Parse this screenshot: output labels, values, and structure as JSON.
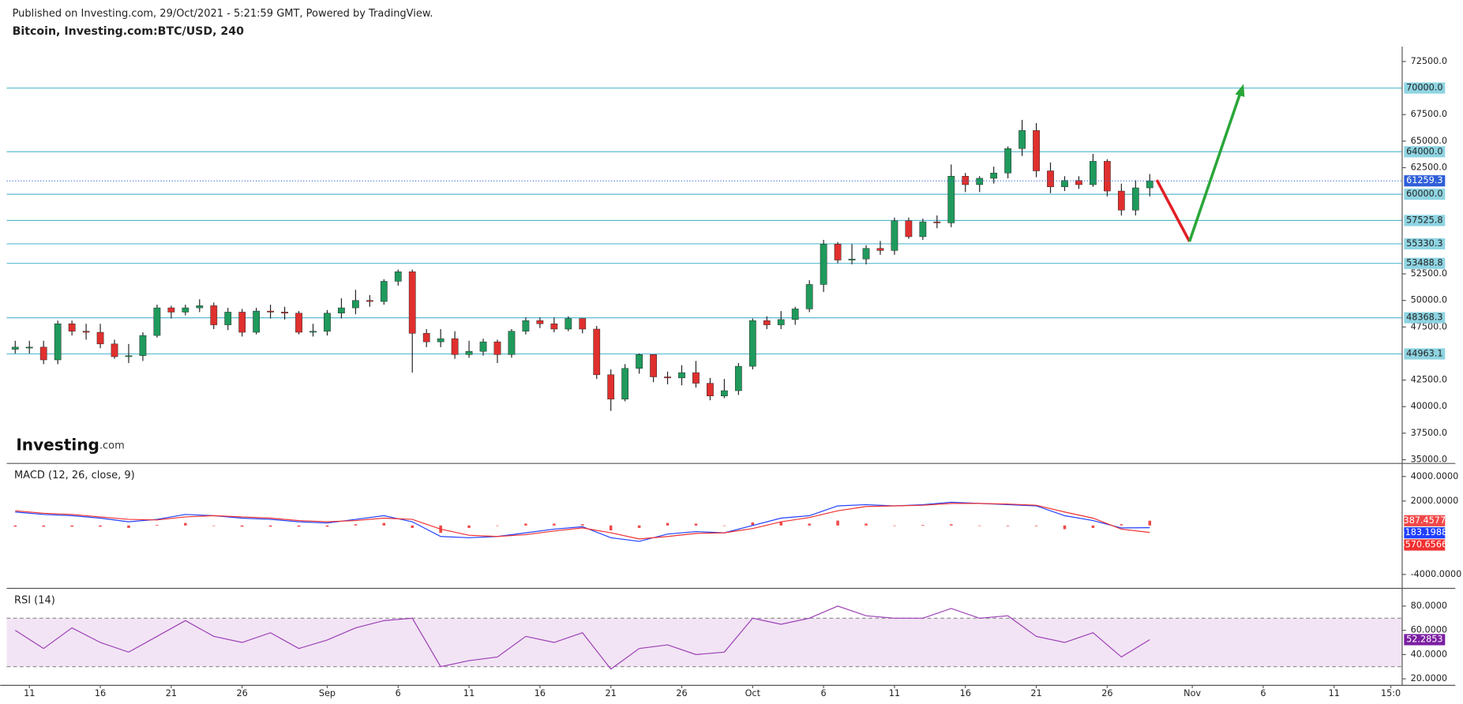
{
  "header": {
    "published": "Published on Investing.com, 29/Oct/2021 - 5:21:59 GMT, Powered by TradingView.",
    "symbol": "Bitcoin, Investing.com:BTC/USD, 240"
  },
  "logo": {
    "name": "Investing",
    "suffix": ".com"
  },
  "chart_data": [
    {
      "type": "candlestick",
      "x": [
        -1,
        0,
        1,
        2,
        3,
        4,
        5,
        6,
        7,
        8,
        9,
        10,
        11,
        12,
        13,
        14,
        15,
        16,
        17,
        18,
        19,
        20,
        21,
        22,
        23,
        24,
        25,
        26,
        27,
        28,
        29,
        30,
        31,
        32,
        33,
        34,
        35,
        36,
        37,
        38,
        39,
        40,
        41,
        42,
        43,
        44,
        45,
        46,
        47,
        48,
        49,
        50,
        51,
        52,
        53,
        54,
        55,
        56,
        57,
        58,
        59,
        60,
        61,
        62,
        63,
        64,
        65,
        66,
        67,
        68,
        69,
        70,
        71,
        72,
        73,
        74,
        75,
        76,
        77,
        78,
        79
      ],
      "open": [
        45400,
        45600,
        45600,
        44400,
        47800,
        47100,
        47000,
        45900,
        44700,
        44800,
        46700,
        49300,
        48900,
        49300,
        49500,
        47700,
        48900,
        47000,
        49000,
        48900,
        48800,
        47000,
        47100,
        48800,
        49300,
        50000,
        49900,
        51800,
        52700,
        46900,
        46100,
        46400,
        44900,
        45200,
        46100,
        44900,
        47100,
        48100,
        47800,
        47300,
        48300,
        47300,
        43000,
        40700,
        43600,
        44900,
        42800,
        42700,
        43200,
        42200,
        41000,
        41500,
        43800,
        48100,
        47700,
        48200,
        49200,
        51500,
        55300,
        53800,
        53900,
        54900,
        54700,
        57500,
        56000,
        57400,
        57300,
        61700,
        60900,
        61500,
        62000,
        64300,
        66000,
        62200,
        60700,
        61300,
        60900,
        63100,
        60300,
        58500,
        60600
      ],
      "high": [
        46200,
        46200,
        46200,
        48100,
        48100,
        47800,
        47800,
        46300,
        45900,
        47000,
        49600,
        49500,
        49600,
        50100,
        49800,
        49300,
        49200,
        49300,
        49600,
        49400,
        49000,
        47800,
        49100,
        50200,
        51000,
        50500,
        52000,
        52900,
        52900,
        47300,
        47300,
        47100,
        46200,
        46400,
        46300,
        47300,
        48400,
        48400,
        48400,
        48500,
        48300,
        47600,
        43500,
        44000,
        45000,
        44900,
        43300,
        43900,
        44300,
        42700,
        42600,
        44100,
        48300,
        48500,
        49000,
        49400,
        51900,
        55700,
        55500,
        55300,
        55200,
        55600,
        57800,
        57800,
        57700,
        58000,
        62800,
        62000,
        61700,
        62600,
        64500,
        67000,
        66700,
        63000,
        61700,
        61700,
        63800,
        63300,
        61000,
        61300,
        61900
      ],
      "low": [
        45000,
        45000,
        44000,
        44000,
        46700,
        46300,
        45500,
        44500,
        44100,
        44300,
        46500,
        48300,
        48600,
        48900,
        47300,
        47200,
        46600,
        46800,
        48300,
        48200,
        46800,
        46600,
        46700,
        48300,
        48700,
        49400,
        49600,
        51400,
        43200,
        45600,
        45600,
        44500,
        44600,
        44800,
        44100,
        44600,
        46800,
        47400,
        47000,
        47100,
        46900,
        42600,
        39600,
        40500,
        43100,
        42300,
        42100,
        42000,
        41800,
        40600,
        40800,
        41100,
        43500,
        47300,
        47300,
        47700,
        48900,
        50800,
        53500,
        53400,
        53400,
        54300,
        54300,
        55800,
        55700,
        56800,
        56900,
        60200,
        60200,
        61000,
        61500,
        63600,
        61600,
        60100,
        60300,
        60500,
        60700,
        59800,
        58000,
        58000,
        59800
      ],
      "close": [
        45600,
        45600,
        44400,
        47800,
        47100,
        47000,
        45900,
        44700,
        44800,
        46700,
        49300,
        48900,
        49300,
        49500,
        47700,
        48900,
        47000,
        49000,
        48900,
        48800,
        47000,
        47100,
        48800,
        49300,
        50000,
        49900,
        51800,
        52700,
        46900,
        46100,
        46400,
        44900,
        45200,
        46100,
        44900,
        47100,
        48100,
        47800,
        47300,
        48300,
        47300,
        43000,
        40700,
        43600,
        44900,
        42800,
        42700,
        43200,
        42200,
        41000,
        41500,
        43800,
        48100,
        47700,
        48200,
        49200,
        51500,
        55300,
        53800,
        53900,
        54900,
        54700,
        57500,
        56000,
        57400,
        57300,
        61700,
        60900,
        61500,
        62000,
        64300,
        66000,
        62200,
        60700,
        61300,
        60900,
        63100,
        60300,
        58500,
        60600,
        61259.3
      ],
      "up_color": "#1f9a5c",
      "down_color": "#e0302e",
      "wick_color": "#222222",
      "xlim": [
        -1.6,
        96.8
      ],
      "ylim": [
        34650,
        73900
      ],
      "yticks": [
        {
          "value": 35000,
          "label": "35000.0"
        },
        {
          "value": 37500,
          "label": "37500.0"
        },
        {
          "value": 40000,
          "label": "40000.0"
        },
        {
          "value": 42500,
          "label": "42500.0"
        },
        {
          "value": 47500,
          "label": "47500.0"
        },
        {
          "value": 50000,
          "label": "50000.0"
        },
        {
          "value": 52500,
          "label": "52500.0"
        },
        {
          "value": 62500,
          "label": "62500.0"
        },
        {
          "value": 65000,
          "label": "65000.0"
        },
        {
          "value": 67500,
          "label": "67500.0"
        },
        {
          "value": 72500,
          "label": "72500.0"
        }
      ],
      "levels": [
        {
          "value": 70000,
          "label": "70000.0"
        },
        {
          "value": 64000,
          "label": "64000.0"
        },
        {
          "value": 60000,
          "label": "60000.0"
        },
        57525.8,
        55330.3,
        53488.8,
        48368.3,
        44963.1
      ],
      "level_color": "#5bbccf",
      "level_box_color": "#8ed4e2",
      "current_price_color": "#2f5fd8"
    },
    {
      "type": "macd",
      "title": "MACD (12, 26, close, 9)",
      "x": [
        -1,
        1,
        3,
        5,
        7,
        9,
        11,
        13,
        15,
        17,
        19,
        21,
        23,
        25,
        27,
        29,
        31,
        33,
        35,
        37,
        39,
        41,
        43,
        45,
        47,
        49,
        51,
        53,
        55,
        57,
        59,
        61,
        63,
        65,
        67,
        69,
        71,
        73,
        75,
        77,
        79
      ],
      "series": [
        {
          "color": "#2040ff",
          "values": [
            1100,
            900,
            800,
            600,
            300,
            500,
            900,
            800,
            600,
            500,
            300,
            200,
            500,
            800,
            300,
            -900,
            -1000,
            -900,
            -600,
            -300,
            -100,
            -1000,
            -1300,
            -700,
            -500,
            -600,
            0,
            600,
            800,
            1600,
            1700,
            1600,
            1700,
            1900,
            1800,
            1700,
            1600,
            800,
            400,
            -200,
            -183.1988
          ]
        },
        {
          "color": "#f03030",
          "values": [
            1200,
            1000,
            900,
            700,
            500,
            450,
            700,
            800,
            700,
            600,
            400,
            300,
            400,
            600,
            500,
            -300,
            -800,
            -900,
            -750,
            -450,
            -200,
            -600,
            -1100,
            -900,
            -650,
            -600,
            -250,
            300,
            650,
            1200,
            1550,
            1600,
            1650,
            1800,
            1800,
            1750,
            1650,
            1100,
            600,
            -300,
            -570.6566
          ]
        }
      ],
      "histogram": {
        "color": "#f04848",
        "values": [
          -100,
          -100,
          -100,
          -100,
          -200,
          50,
          200,
          0,
          -100,
          -100,
          -100,
          -100,
          100,
          200,
          -200,
          -600,
          -200,
          0,
          150,
          150,
          100,
          -400,
          -200,
          200,
          150,
          0,
          250,
          300,
          150,
          400,
          150,
          0,
          50,
          100,
          0,
          -50,
          -50,
          -300,
          -200,
          100,
          387.4577
        ]
      },
      "xlim": [
        -1.6,
        96.8
      ],
      "ylim": [
        -5140,
        5070
      ],
      "yticks": [
        {
          "value": 4000,
          "label": "4000.0000"
        },
        {
          "value": 2000,
          "label": "2000.0000"
        },
        {
          "value": -4000,
          "label": "-4000.0000"
        }
      ]
    },
    {
      "type": "rsi",
      "title": "RSI (14)",
      "x": [
        -1,
        1,
        3,
        5,
        7,
        9,
        11,
        13,
        15,
        17,
        19,
        21,
        23,
        25,
        27,
        29,
        31,
        33,
        35,
        37,
        39,
        41,
        43,
        45,
        47,
        49,
        51,
        53,
        55,
        57,
        59,
        61,
        63,
        65,
        67,
        69,
        71,
        73,
        75,
        77,
        79
      ],
      "values": [
        60,
        45,
        62,
        50,
        42,
        55,
        68,
        55,
        50,
        58,
        45,
        52,
        62,
        68,
        70,
        30,
        35,
        38,
        55,
        50,
        58,
        28,
        45,
        48,
        40,
        42,
        70,
        65,
        70,
        80,
        72,
        70,
        70,
        78,
        70,
        72,
        55,
        50,
        58,
        38,
        52.2853
      ],
      "color": "#9c3fb5",
      "box_color": "#7b1fa2",
      "band": [
        30,
        70
      ],
      "band_color": "#f2e4f5",
      "xlim": [
        -1.6,
        96.8
      ],
      "ylim": [
        14.6,
        94.6
      ],
      "yticks": [
        {
          "value": 20,
          "label": "20.0000"
        },
        {
          "value": 40,
          "label": "40.0000"
        },
        {
          "value": 60,
          "label": "60.0000"
        },
        {
          "value": 80,
          "label": "80.0000"
        }
      ],
      "xticks": [
        {
          "value": 0,
          "label": "11"
        },
        {
          "value": 5,
          "label": "16"
        },
        {
          "value": 10,
          "label": "21"
        },
        {
          "value": 15,
          "label": "26"
        },
        {
          "value": 21,
          "label": "Sep"
        },
        {
          "value": 26,
          "label": "6"
        },
        {
          "value": 31,
          "label": "11"
        },
        {
          "value": 36,
          "label": "16"
        },
        {
          "value": 41,
          "label": "21"
        },
        {
          "value": 46,
          "label": "26"
        },
        {
          "value": 51,
          "label": "Oct"
        },
        {
          "value": 56,
          "label": "6"
        },
        {
          "value": 61,
          "label": "11"
        },
        {
          "value": 66,
          "label": "16"
        },
        {
          "value": 71,
          "label": "21"
        },
        {
          "value": 76,
          "label": "26"
        },
        {
          "value": 82,
          "label": "Nov"
        },
        {
          "value": 87,
          "label": "6"
        },
        {
          "value": 92,
          "label": "11"
        },
        {
          "value": 96,
          "label": "15:0"
        }
      ]
    }
  ]
}
